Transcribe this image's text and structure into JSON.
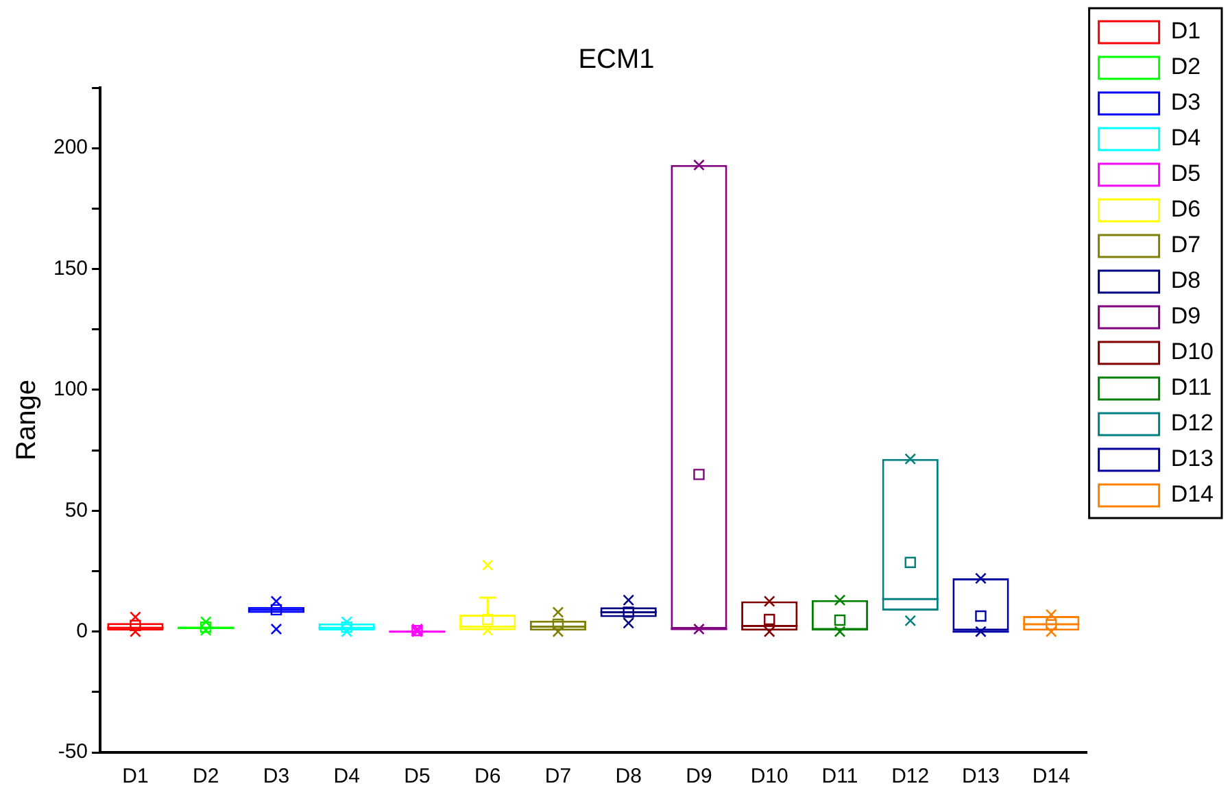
{
  "chart_data": {
    "type": "box",
    "title": "ECM1",
    "ylabel": "Range",
    "categories": [
      "D1",
      "D2",
      "D3",
      "D4",
      "D5",
      "D6",
      "D7",
      "D8",
      "D9",
      "D10",
      "D11",
      "D12",
      "D13",
      "D14"
    ],
    "series": [
      {
        "name": "D1",
        "color": "#ff0000",
        "boxes": [
          {
            "low": 0,
            "q1": 0,
            "median": 1.5,
            "q3": 3.5,
            "high": 3.5,
            "mean": 2.5,
            "outliers": [
              6,
              0
            ]
          },
          null,
          null,
          null,
          null,
          null,
          null,
          null,
          null,
          null,
          null,
          null,
          null,
          null
        ]
      },
      {
        "name": "D2",
        "color": "#00ff00",
        "boxes": [
          null,
          {
            "low": 1,
            "q1": 1,
            "median": 1.5,
            "q3": 2,
            "high": 2,
            "mean": 1.8,
            "outliers": [
              4,
              0.5
            ]
          },
          null,
          null,
          null,
          null,
          null,
          null,
          null,
          null,
          null,
          null,
          null,
          null
        ]
      },
      {
        "name": "D3",
        "color": "#0000ff",
        "boxes": [
          null,
          null,
          {
            "low": 7.7,
            "q1": 7.7,
            "median": 9,
            "q3": 10.2,
            "high": 10.2,
            "mean": 9,
            "outliers": [
              12.5,
              1
            ]
          },
          null,
          null,
          null,
          null,
          null,
          null,
          null,
          null,
          null,
          null,
          null
        ]
      },
      {
        "name": "D4",
        "color": "#00ffff",
        "boxes": [
          null,
          null,
          null,
          {
            "low": 0,
            "q1": 0,
            "median": 1.5,
            "q3": 3.4,
            "high": 3.4,
            "mean": 1.8,
            "outliers": [
              4,
              0
            ]
          },
          null,
          null,
          null,
          null,
          null,
          null,
          null,
          null,
          null,
          null
        ]
      },
      {
        "name": "D5",
        "color": "#ff00ff",
        "boxes": [
          null,
          null,
          null,
          null,
          {
            "low": 0,
            "q1": 0,
            "median": 0,
            "q3": 0.5,
            "high": 0.5,
            "mean": 0.4,
            "outliers": [
              1,
              0
            ]
          },
          null,
          null,
          null,
          null,
          null,
          null,
          null,
          null,
          null
        ]
      },
      {
        "name": "D6",
        "color": "#ffff00",
        "boxes": [
          null,
          null,
          null,
          null,
          null,
          {
            "low": 0.5,
            "q1": 0.5,
            "median": 2,
            "q3": 7,
            "high": 14,
            "mean": 5,
            "outliers": [
              27.5,
              0.5
            ]
          },
          null,
          null,
          null,
          null,
          null,
          null,
          null,
          null
        ]
      },
      {
        "name": "D7",
        "color": "#808000",
        "boxes": [
          null,
          null,
          null,
          null,
          null,
          null,
          {
            "low": 0,
            "q1": 0,
            "median": 2,
            "q3": 4.5,
            "high": 4.5,
            "mean": 3,
            "outliers": [
              8,
              0
            ]
          },
          null,
          null,
          null,
          null,
          null,
          null,
          null
        ]
      },
      {
        "name": "D8",
        "color": "#000080",
        "boxes": [
          null,
          null,
          null,
          null,
          null,
          null,
          null,
          {
            "low": 6,
            "q1": 6,
            "median": 8,
            "q3": 10,
            "high": 10,
            "mean": 8,
            "outliers": [
              13,
              3.5
            ]
          },
          null,
          null,
          null,
          null,
          null,
          null
        ]
      },
      {
        "name": "D9",
        "color": "#800080",
        "boxes": [
          null,
          null,
          null,
          null,
          null,
          null,
          null,
          null,
          {
            "low": 1,
            "q1": 1,
            "median": 1,
            "q3": 193,
            "high": 193,
            "mean": 65,
            "outliers": [
              193,
              1
            ]
          },
          null,
          null,
          null,
          null,
          null
        ]
      },
      {
        "name": "D10",
        "color": "#800000",
        "boxes": [
          null,
          null,
          null,
          null,
          null,
          null,
          null,
          null,
          null,
          {
            "low": 0,
            "q1": 0,
            "median": 2.3,
            "q3": 12.5,
            "high": 12.5,
            "mean": 5,
            "outliers": [
              12.5,
              0
            ]
          },
          null,
          null,
          null,
          null
        ]
      },
      {
        "name": "D11",
        "color": "#008000",
        "boxes": [
          null,
          null,
          null,
          null,
          null,
          null,
          null,
          null,
          null,
          null,
          {
            "low": 0,
            "q1": 0,
            "median": 1,
            "q3": 13,
            "high": 13,
            "mean": 4.7,
            "outliers": [
              13,
              0
            ]
          },
          null,
          null,
          null
        ]
      },
      {
        "name": "D12",
        "color": "#008080",
        "boxes": [
          null,
          null,
          null,
          null,
          null,
          null,
          null,
          null,
          null,
          null,
          null,
          {
            "low": 8.7,
            "q1": 8.7,
            "median": 13.4,
            "q3": 71.4,
            "high": 71.4,
            "mean": 28.6,
            "outliers": [
              71.4,
              4.5
            ]
          },
          null,
          null
        ]
      },
      {
        "name": "D13",
        "color": "#0000a0",
        "boxes": [
          null,
          null,
          null,
          null,
          null,
          null,
          null,
          null,
          null,
          null,
          null,
          null,
          {
            "low": 0,
            "q1": 0,
            "median": 0,
            "q3": 22,
            "high": 22,
            "mean": 6.4,
            "outliers": [
              22,
              0
            ]
          },
          null
        ]
      },
      {
        "name": "D14",
        "color": "#ff8000",
        "boxes": [
          null,
          null,
          null,
          null,
          null,
          null,
          null,
          null,
          null,
          null,
          null,
          null,
          null,
          {
            "low": 0.4,
            "q1": 0.4,
            "median": 3,
            "q3": 6.4,
            "high": 6.4,
            "mean": 2.8,
            "outliers": [
              7,
              0
            ]
          }
        ]
      }
    ],
    "ylim": [
      -50,
      225
    ],
    "yticks": [
      -50,
      {
        "value": -25,
        "label": null
      },
      0,
      {
        "value": 25,
        "label": null
      },
      50,
      {
        "value": 75,
        "label": null
      },
      100,
      {
        "value": 125,
        "label": null
      },
      150,
      {
        "value": 175,
        "label": null
      },
      200,
      {
        "value": 225,
        "label": null
      }
    ],
    "legend": "top right"
  }
}
